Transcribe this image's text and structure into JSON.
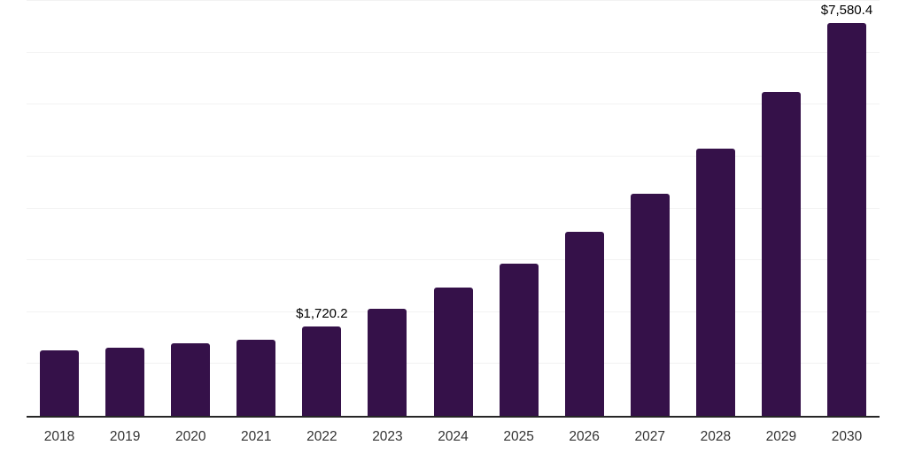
{
  "chart_data": {
    "type": "bar",
    "title": "",
    "categories": [
      "2018",
      "2019",
      "2020",
      "2021",
      "2022",
      "2023",
      "2024",
      "2025",
      "2026",
      "2027",
      "2028",
      "2029",
      "2030"
    ],
    "values": [
      1270,
      1310,
      1405,
      1475,
      1720.2,
      2065,
      2470,
      2940,
      3550,
      4275,
      5155,
      6245,
      7580.4
    ],
    "point_labels": [
      "",
      "",
      "",
      "",
      "$1,720.2",
      "",
      "",
      "",
      "",
      "",
      "",
      "",
      "$7,580.4"
    ],
    "ylim": [
      0,
      8000
    ],
    "gridline_step": 1000,
    "grid": true,
    "legend": "none",
    "xlabel": "",
    "ylabel": "",
    "colors": {
      "bar": "#351149",
      "axis_line": "#262626",
      "gridline": "#f2f2f2",
      "x_tick_label": "#333333",
      "data_label": "#000000",
      "background": "#ffffff"
    }
  }
}
